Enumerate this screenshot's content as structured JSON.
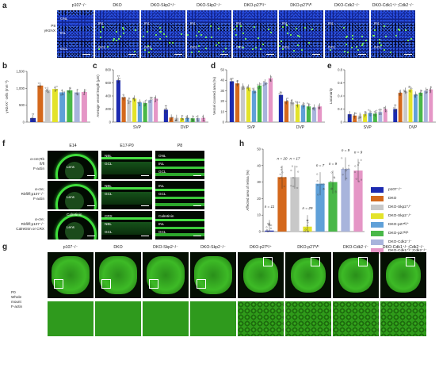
{
  "panel_letters": [
    "a",
    "b",
    "c",
    "d",
    "e",
    "f",
    "g",
    "h"
  ],
  "panel_a": {
    "row_label_1": "P8",
    "row_label_2": "γH2AX",
    "columns": [
      "p107⁻/⁻",
      "DKO",
      "DKO-Skp2⁺/⁻",
      "DKO-Skp2⁻/⁻",
      "DKO-p27ᴷ/⁺",
      "DKO-p27ᴷ/ᴷ",
      "DKO-Cdk2⁻/⁻",
      "DKO-Cdk1⁺/⁻;Cdk2⁻/⁻"
    ],
    "layer_labels_first": [
      "ONL",
      "INL",
      "GCL"
    ],
    "layer_labels": [
      "INL",
      "GCL"
    ]
  },
  "panel_f": {
    "columns": [
      "E14",
      "E17-P0",
      "P8"
    ],
    "rows": [
      [
        "α-cre;Rb",
        "fl/fl",
        "F-actin"
      ],
      [
        "α-cre;",
        "Rbfl/fl;p107⁻/⁻",
        "F-actin"
      ],
      [
        "α-cre;",
        "Rbfl/fl;p107⁻/⁻",
        "Calretinin or CRX"
      ]
    ],
    "inner_labels": {
      "r1c1": [
        "Lens"
      ],
      "r1c2": [
        "NBL",
        "GCL"
      ],
      "r1c3": [
        "ONL",
        "INL",
        "GCL"
      ],
      "r2c1": [
        "Lens"
      ],
      "r2c2": [
        "NBL",
        "GCL"
      ],
      "r2c3": [
        "INL",
        "GCL"
      ],
      "r3c1": [
        "Calretinin",
        "Lens"
      ],
      "r3c2": [
        "CRX",
        "NBL",
        "GCL"
      ],
      "r3c3": [
        "Calretinin",
        "INL",
        "GCL"
      ]
    }
  },
  "panel_g": {
    "row_label": [
      "P0",
      "Whole",
      "mount",
      "F-actin"
    ],
    "columns": [
      "p107⁻/⁻",
      "DKO",
      "DKO-Skp2⁺/⁻",
      "DKO-Skp2⁻/⁻",
      "DKO-p27ᴷ/⁺",
      "DKO-p27ᴷ/ᴷ",
      "DKO-Cdk2⁻/⁻",
      "DKO-Cdk1⁺/⁻;Cdk2⁻/⁻"
    ]
  },
  "colors": {
    "p107": "#1c2ab0",
    "DKO": "#d4681c",
    "Skp2het": "#c8c8c8",
    "Skp2ko": "#e3e32a",
    "p27KP": "#5fa0d8",
    "p27KK": "#49b848",
    "Cdk2ko": "#a8b4dc",
    "Cdk1Cdk2": "#e596c6"
  },
  "chart_data": [
    {
      "panel": "b",
      "type": "bar",
      "ylabel": "γH2AX⁺ cells (mm⁻²)",
      "ylim": [
        0,
        1500
      ],
      "yticks": [
        "0",
        "500",
        "1,000",
        "1,500"
      ],
      "values": [
        120,
        1080,
        950,
        980,
        880,
        940,
        880,
        890
      ],
      "annotations": [
        "**",
        "",
        "",
        "",
        "",
        "",
        "",
        ""
      ]
    },
    {
      "panel": "c",
      "type": "bar",
      "ylabel": "Average vessel length (μm)",
      "ylim": [
        0,
        800
      ],
      "yticks": [
        "0",
        "200",
        "400",
        "600",
        "800"
      ],
      "groups": [
        "SVP",
        "DVP"
      ],
      "svp_values": [
        640,
        380,
        330,
        360,
        300,
        290,
        340,
        360
      ],
      "dvp_values": [
        190,
        70,
        65,
        60,
        62,
        58,
        60,
        65
      ],
      "annotations": [
        "**",
        "**"
      ]
    },
    {
      "panel": "d",
      "type": "bar",
      "ylabel": "Vessel covered area (%)",
      "ylim": [
        0,
        50
      ],
      "yticks": [
        "0",
        "10",
        "20",
        "30",
        "40",
        "50"
      ],
      "groups": [
        "SVP",
        "DVP"
      ],
      "svp_values": [
        39,
        37,
        34,
        33,
        30,
        35,
        38,
        42
      ],
      "dvp_values": [
        26,
        20,
        19,
        17,
        16,
        15,
        14,
        15
      ]
    },
    {
      "panel": "e",
      "type": "bar",
      "ylabel": "Lacunarity",
      "ylim": [
        0,
        0.8
      ],
      "yticks": [
        "0",
        "0.2",
        "0.4",
        "0.6",
        "0.8"
      ],
      "groups": [
        "SVP",
        "DVP"
      ],
      "svp_values": [
        0.12,
        0.1,
        0.1,
        0.12,
        0.14,
        0.13,
        0.16,
        0.2
      ],
      "dvp_values": [
        0.2,
        0.45,
        0.48,
        0.5,
        0.42,
        0.45,
        0.48,
        0.5
      ],
      "annotations": [
        "**"
      ]
    },
    {
      "panel": "h",
      "type": "bar",
      "ylabel": "Affected area of retina (%)",
      "ylim": [
        0,
        50
      ],
      "yticks": [
        "0",
        "10",
        "20",
        "30",
        "40",
        "50"
      ],
      "values": [
        0,
        33,
        33,
        3,
        29,
        30,
        38,
        37
      ],
      "n_labels": [
        "n = 11",
        "n = 20",
        "n = 17",
        "n = 29",
        "n = 7",
        "n = 9",
        "n = 9",
        "n = 9"
      ],
      "annotations": [
        "**",
        "",
        "",
        "**",
        "",
        "",
        "",
        ""
      ],
      "legend": [
        "p107⁻/⁻",
        "DKO",
        "DKO-Skp2⁺/⁻",
        "DKO-Skp2⁻/⁻",
        "DKO-p27ᴷ/⁺",
        "DKO-p27ᴷ/ᴷ",
        "DKO-Cdk2⁻/⁻",
        "DKO-Cdk1⁺/⁻;Cdk2⁻/⁻"
      ]
    }
  ]
}
